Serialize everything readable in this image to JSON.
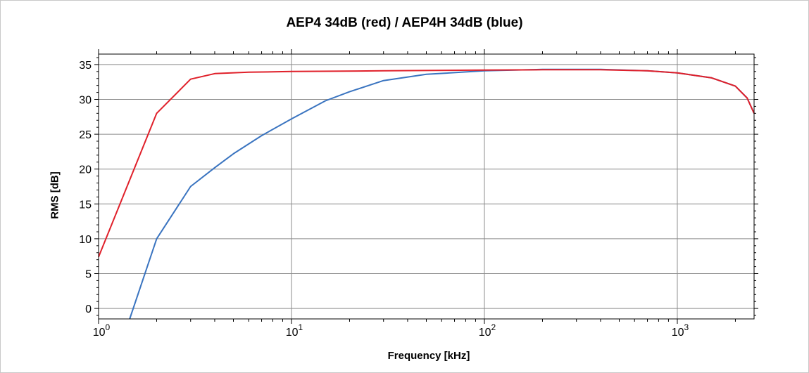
{
  "chart_data": {
    "type": "line",
    "title": "AEP4 34dB (red) / AEP4H 34dB (blue)",
    "xlabel": "Frequency [kHz]",
    "ylabel": "RMS [dB]",
    "xscale": "log",
    "xlim": [
      1,
      2500
    ],
    "ylim": [
      -1.5,
      36.5
    ],
    "grid": true,
    "x_ticks": [
      {
        "value": 1,
        "base": "10",
        "exp": "0"
      },
      {
        "value": 10,
        "base": "10",
        "exp": "1"
      },
      {
        "value": 100,
        "base": "10",
        "exp": "2"
      },
      {
        "value": 1000,
        "base": "10",
        "exp": "3"
      }
    ],
    "y_ticks": [
      0,
      5,
      10,
      15,
      20,
      25,
      30,
      35
    ],
    "series": [
      {
        "color": "#3a74c0",
        "x": [
          1.45,
          2,
          3,
          4,
          5,
          7,
          10,
          15,
          20,
          30,
          50,
          100,
          200,
          400,
          700,
          1000,
          1500,
          2000,
          2300,
          2500
        ],
        "y": [
          -1.5,
          10,
          17.5,
          20.2,
          22.2,
          24.8,
          27.2,
          29.8,
          31.1,
          32.7,
          33.6,
          34.1,
          34.3,
          34.3,
          34.1,
          33.8,
          33.1,
          31.9,
          30.2,
          28
        ]
      },
      {
        "color": "#e0202a",
        "x": [
          1,
          2,
          3,
          4,
          6,
          10,
          30,
          100,
          200,
          400,
          700,
          1000,
          1500,
          2000,
          2300,
          2500
        ],
        "y": [
          7.4,
          28,
          32.9,
          33.7,
          33.9,
          34.0,
          34.1,
          34.2,
          34.25,
          34.25,
          34.1,
          33.8,
          33.1,
          31.9,
          30.2,
          28
        ]
      }
    ]
  }
}
